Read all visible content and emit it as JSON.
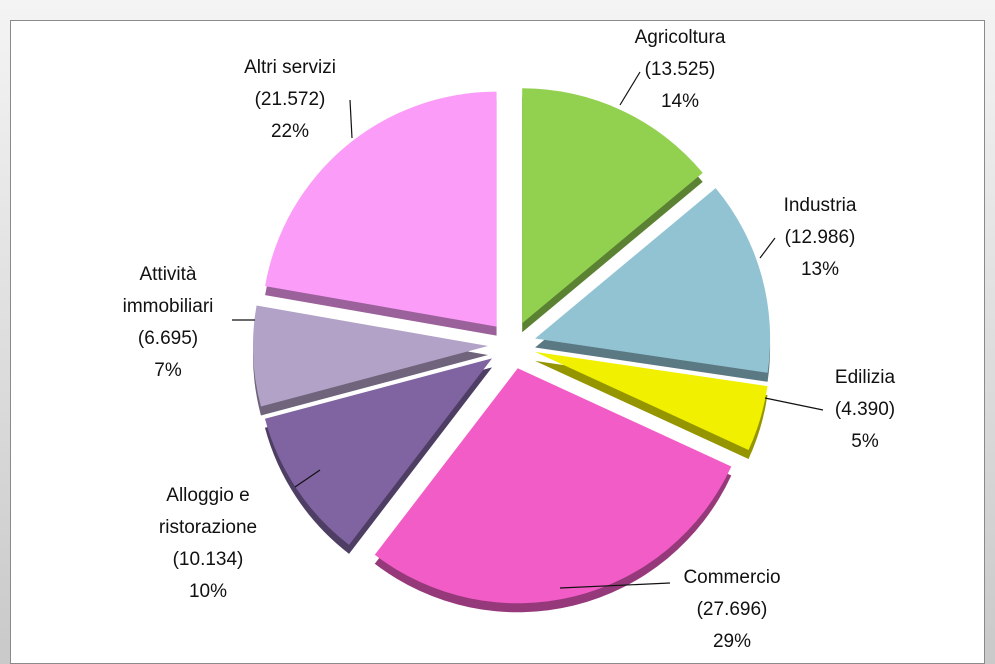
{
  "chart_data": {
    "type": "pie",
    "categories": [
      "Agricoltura",
      "Industria",
      "Edilizia",
      "Commercio",
      "Alloggio e ristorazione",
      "Attività immobiliari",
      "Altri servizi"
    ],
    "values": [
      13525,
      12986,
      4390,
      27696,
      10134,
      6695,
      21572
    ],
    "value_labels": [
      "(13.525)",
      "(12.986)",
      "(4.390)",
      "(27.696)",
      "(10.134)",
      "(6.695)",
      "(21.572)"
    ],
    "percent_labels": [
      "14%",
      "13%",
      "5%",
      "29%",
      "10%",
      "7%",
      "22%"
    ],
    "colors": [
      "#92d050",
      "#92c3d3",
      "#f0f000",
      "#f25cc6",
      "#8064a2",
      "#b3a2c7",
      "#fa9cf8"
    ]
  }
}
